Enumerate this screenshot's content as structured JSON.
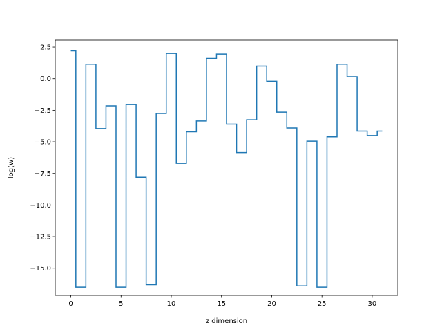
{
  "chart_data": {
    "type": "line",
    "drawstyle": "steps-mid",
    "title": "",
    "xlabel": "z dimension",
    "ylabel": "log(w)",
    "xlim": [
      -1.55,
      32.55
    ],
    "ylim": [
      -17.15,
      3.05
    ],
    "xticks": [
      0,
      5,
      10,
      15,
      20,
      25,
      30
    ],
    "xtick_labels": [
      "0",
      "5",
      "10",
      "15",
      "20",
      "25",
      "30"
    ],
    "yticks": [
      2.5,
      0.0,
      -2.5,
      -5.0,
      -7.5,
      -10.0,
      -12.5,
      -15.0
    ],
    "ytick_labels": [
      "2.5",
      "0.0",
      "−2.5",
      "−5.0",
      "−7.5",
      "−10.0",
      "−12.5",
      "−15.0"
    ],
    "grid": false,
    "series": [
      {
        "color": "#1f77b4",
        "x": [
          0,
          1,
          2,
          3,
          4,
          5,
          6,
          7,
          8,
          9,
          10,
          11,
          12,
          13,
          14,
          15,
          16,
          17,
          18,
          19,
          20,
          21,
          22,
          23,
          24,
          25,
          26,
          27,
          28,
          29,
          30,
          31
        ],
        "values": [
          2.2,
          -16.5,
          1.15,
          -3.95,
          -2.15,
          -16.5,
          -2.05,
          -7.8,
          -16.3,
          -2.75,
          2.0,
          -6.7,
          -4.2,
          -3.35,
          1.6,
          1.95,
          -3.6,
          -5.85,
          -3.25,
          1.0,
          -0.2,
          -2.65,
          -3.9,
          -16.4,
          -4.95,
          -16.5,
          -4.6,
          1.15,
          0.15,
          -4.15,
          -4.5,
          -4.15
        ]
      }
    ]
  }
}
